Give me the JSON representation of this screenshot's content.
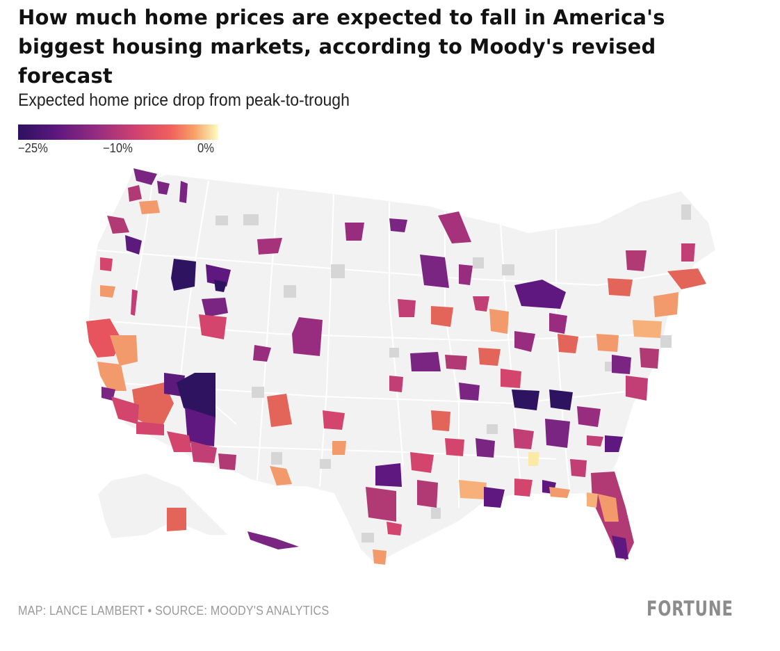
{
  "header": {
    "title": "How much home prices are expected to fall in America's biggest housing markets, according to Moody's revised forecast",
    "subtitle": "Expected home price drop from peak-to-trough"
  },
  "legend": {
    "labels": [
      "−25%",
      "−10%",
      "0%"
    ],
    "stops": [
      {
        "value": -25,
        "color": "#2d1160"
      },
      {
        "value": -20,
        "color": "#5f187f"
      },
      {
        "value": -15,
        "color": "#982d80"
      },
      {
        "value": -10,
        "color": "#d3436e"
      },
      {
        "value": -6,
        "color": "#f0605d"
      },
      {
        "value": -3,
        "color": "#f8a067"
      },
      {
        "value": 0,
        "color": "#fcfdbf"
      }
    ]
  },
  "colors": {
    "land": "#f2f2f2",
    "border": "#ffffff",
    "no_data": "#d6d6d6"
  },
  "footer": {
    "credit": "MAP: LANCE LAMBERT • SOURCE: MOODY'S ANALYTICS",
    "logo": "FORTUNE"
  }
}
